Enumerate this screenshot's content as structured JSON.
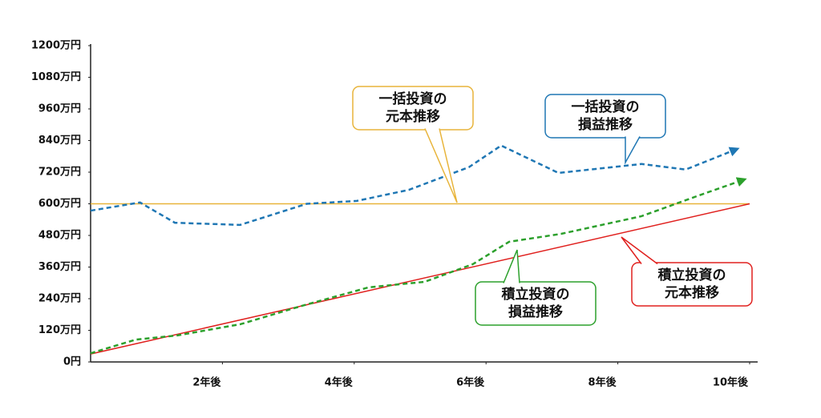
{
  "chart_data": {
    "type": "line",
    "xlim": [
      0,
      10
    ],
    "xticks": [
      {
        "value": 2,
        "label": "2年後"
      },
      {
        "value": 4,
        "label": "4年後"
      },
      {
        "value": 6,
        "label": "6年後"
      },
      {
        "value": 8,
        "label": "8年後"
      },
      {
        "value": 10,
        "label": "10年後"
      }
    ],
    "ylim": [
      0,
      1200
    ],
    "yticks": [
      {
        "value": 0,
        "label": "0円"
      },
      {
        "value": 120,
        "label": "120万円"
      },
      {
        "value": 240,
        "label": "240万円"
      },
      {
        "value": 360,
        "label": "360万円"
      },
      {
        "value": 480,
        "label": "480万円"
      },
      {
        "value": 600,
        "label": "600万円"
      },
      {
        "value": 720,
        "label": "720万円"
      },
      {
        "value": 840,
        "label": "840万円"
      },
      {
        "value": 960,
        "label": "960万円"
      },
      {
        "value": 1080,
        "label": "1080万円"
      },
      {
        "value": 1200,
        "label": "1200万円"
      }
    ],
    "grid": false,
    "series": [
      {
        "color": "#e8b43a",
        "dashed": false,
        "x": [
          0,
          10
        ],
        "values": [
          600,
          600
        ]
      },
      {
        "color": "#e0201e",
        "dashed": false,
        "x": [
          0,
          10
        ],
        "values": [
          30,
          600
        ]
      },
      {
        "color": "#1f77b4",
        "dashed": true,
        "x": [
          0,
          0.75,
          1.28,
          2.27,
          3.28,
          4.04,
          4.83,
          5.74,
          6.23,
          7.1,
          8.36,
          9.03,
          9.82
        ],
        "values": [
          574,
          605,
          528,
          520,
          600,
          611,
          653,
          739,
          821,
          717,
          751,
          730,
          809
        ]
      },
      {
        "color": "#2ca02c",
        "dashed": true,
        "x": [
          0,
          0.69,
          1.3,
          2.27,
          3.25,
          4.22,
          5.07,
          5.8,
          6.35,
          7.14,
          8.36,
          9.2,
          9.93
        ],
        "values": [
          33,
          85,
          100,
          143,
          216,
          283,
          304,
          371,
          456,
          486,
          553,
          629,
          693
        ]
      }
    ],
    "annotations": [
      {
        "lines": [
          "一括投資の",
          "元本推移"
        ],
        "color": "#e8b43a"
      },
      {
        "lines": [
          "一括投資の",
          "損益推移"
        ],
        "color": "#1f77b4"
      },
      {
        "lines": [
          "積立投資の",
          "損益推移"
        ],
        "color": "#2ca02c"
      },
      {
        "lines": [
          "積立投資の",
          "元本推移"
        ],
        "color": "#e0201e"
      }
    ]
  }
}
